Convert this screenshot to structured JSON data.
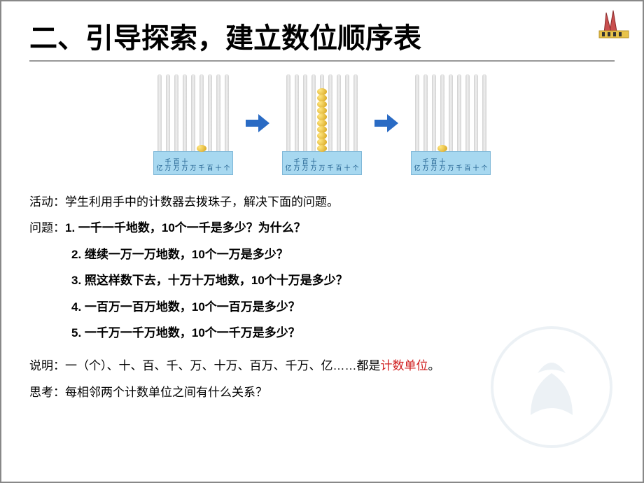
{
  "title": "二、引导探索，建立数位顺序表",
  "abacus": {
    "rod_count": 9,
    "rod_color_light": "#f0f0f0",
    "rod_color_dark": "#d0d0d0",
    "bead_color_light": "#ffe680",
    "bead_color_dark": "#d4a017",
    "base_bg": "#a7d8f0",
    "base_border": "#7fb8d8",
    "label_color": "#1a5a8a",
    "labels": [
      "亿",
      "千万",
      "百万",
      "十万",
      "万",
      "千",
      "百",
      "十",
      "个"
    ],
    "arrow_color": "#2a6bc4",
    "states": [
      {
        "beads_on_rod_index": 5,
        "bead_count": 1
      },
      {
        "beads_on_rod_index": 4,
        "bead_count": 10
      },
      {
        "beads_on_rod_index": 3,
        "bead_count": 1
      }
    ]
  },
  "activity_label": "活动：",
  "activity_text": "学生利用手中的计数器去拨珠子，解决下面的问题。",
  "question_label": "问题：",
  "questions": [
    "1. 一千一千地数，10个一千是多少？为什么？",
    "2. 继续一万一万地数，10个一万是多少？",
    "3. 照这样数下去，十万十万地数，10个十万是多少？",
    "4. 一百万一百万地数，10个一百万是多少？",
    "5. 一千万一千万地数，10个一千万是多少？"
  ],
  "explain_label": "说明：",
  "explain_text_before": "一（个）、十、百、千、万、十万、百万、千万、亿……都是",
  "explain_highlight": "计数单位",
  "explain_text_after": "。",
  "think_label": "思考：",
  "think_text": "每相邻两个计数单位之间有什么关系？",
  "colors": {
    "text": "#000000",
    "highlight": "#d02020",
    "rule": "#999999",
    "background": "#ffffff"
  },
  "fontsize": {
    "title": 40,
    "body": 17,
    "base_label": 9
  }
}
